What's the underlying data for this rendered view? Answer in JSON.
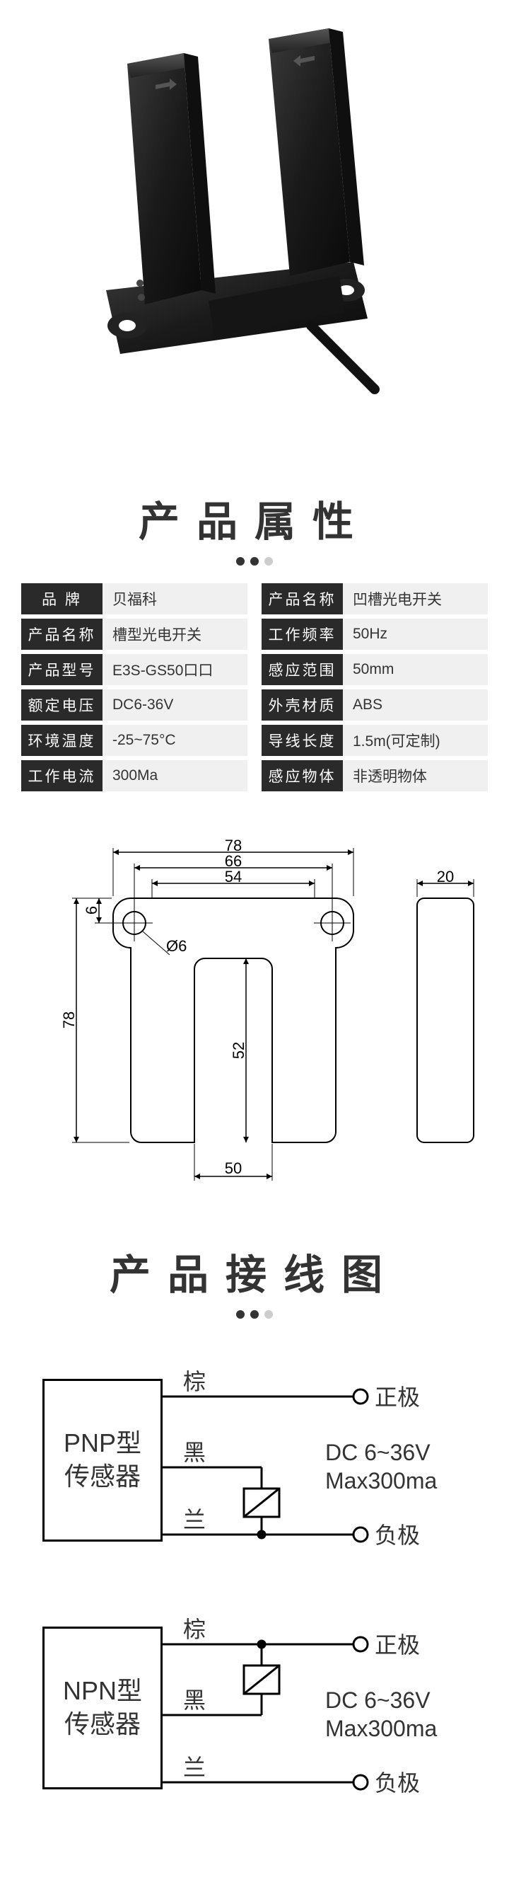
{
  "headings": {
    "specs": "产品属性",
    "wiring": "产品接线图"
  },
  "specs": {
    "left": [
      {
        "label": "品   牌",
        "value": "贝福科"
      },
      {
        "label": "产品名称",
        "value": "槽型光电开关"
      },
      {
        "label": "产品型号",
        "value": "E3S-GS50口口"
      },
      {
        "label": "额定电压",
        "value": "DC6-36V"
      },
      {
        "label": "环境温度",
        "value": "-25~75°C"
      },
      {
        "label": "工作电流",
        "value": "300Ma"
      }
    ],
    "right": [
      {
        "label": "产品名称",
        "value": "凹槽光电开关"
      },
      {
        "label": "工作频率",
        "value": "50Hz"
      },
      {
        "label": "感应范围",
        "value": "50mm"
      },
      {
        "label": "外壳材质",
        "value": "ABS"
      },
      {
        "label": "导线长度",
        "value": "1.5m(可定制)"
      },
      {
        "label": "感应物体",
        "value": "非透明物体"
      }
    ]
  },
  "dimensions": {
    "outer_width": "78",
    "hole_cx_width": "66",
    "slot_top_width": "54",
    "height": "78",
    "slot_depth": "52",
    "slot_width": "50",
    "side_width": "20",
    "hole_dia": "Ø6",
    "vertical_offset": "6"
  },
  "wiring": {
    "pnp": {
      "title1": "PNP型",
      "title2": "传感器"
    },
    "npn": {
      "title1": "NPN型",
      "title2": "传感器"
    },
    "colors": {
      "brown": "棕",
      "black": "黑",
      "blue": "兰"
    },
    "terminals": {
      "positive": "正极",
      "negative": "负极"
    },
    "ratings": {
      "voltage": "DC  6~36V",
      "current": "Max300ma"
    }
  },
  "colors": {
    "stroke": "#000000",
    "label_bg": "#2a2a2a",
    "value_bg": "#f0f0f0",
    "text": "#333333"
  }
}
